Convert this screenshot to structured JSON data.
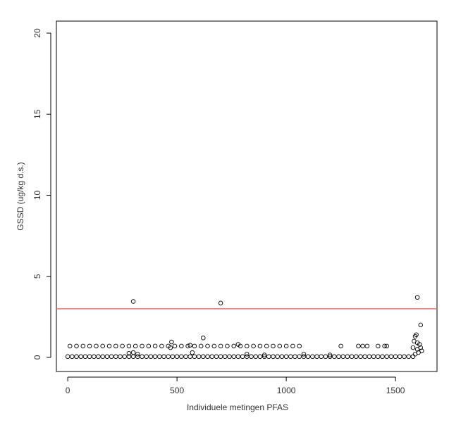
{
  "chart_data": {
    "type": "scatter",
    "xlabel": "Individuele metingen PFAS",
    "ylabel": "GSSD (ug/kg d.s.)",
    "x": [
      0,
      20,
      40,
      60,
      80,
      100,
      120,
      140,
      160,
      180,
      200,
      220,
      240,
      260,
      280,
      300,
      320,
      340,
      360,
      380,
      400,
      420,
      440,
      460,
      480,
      500,
      520,
      540,
      560,
      580,
      600,
      620,
      640,
      660,
      680,
      700,
      720,
      740,
      760,
      780,
      800,
      820,
      840,
      860,
      880,
      900,
      920,
      940,
      960,
      980,
      1000,
      1020,
      1040,
      1060,
      1080,
      1100,
      1120,
      1140,
      1160,
      1180,
      1200,
      1220,
      1240,
      1260,
      1280,
      1300,
      1320,
      1340,
      1360,
      1380,
      1400,
      1420,
      1440,
      1460,
      1480,
      1500,
      1520,
      1540,
      1560,
      1580,
      10,
      40,
      70,
      100,
      130,
      160,
      190,
      220,
      250,
      280,
      310,
      340,
      370,
      400,
      430,
      460,
      490,
      520,
      550,
      580,
      610,
      640,
      670,
      700,
      730,
      760,
      790,
      820,
      850,
      880,
      910,
      940,
      970,
      1000,
      1030,
      1060,
      1250,
      1330,
      1350,
      1370,
      1420,
      1450,
      1460,
      300,
      700,
      1600,
      620,
      1615,
      475,
      280,
      300,
      320,
      570,
      780,
      820,
      900,
      1080,
      1200,
      1580,
      1585,
      1590,
      1595,
      1600,
      1605,
      1610,
      1615,
      1620,
      1590,
      1600,
      470,
      560
    ],
    "values": [
      0.05,
      0.05,
      0.05,
      0.05,
      0.05,
      0.05,
      0.05,
      0.05,
      0.05,
      0.05,
      0.05,
      0.05,
      0.05,
      0.05,
      0.05,
      0.05,
      0.05,
      0.05,
      0.05,
      0.05,
      0.05,
      0.05,
      0.05,
      0.05,
      0.05,
      0.05,
      0.05,
      0.05,
      0.05,
      0.05,
      0.05,
      0.05,
      0.05,
      0.05,
      0.05,
      0.05,
      0.05,
      0.05,
      0.05,
      0.05,
      0.05,
      0.05,
      0.05,
      0.05,
      0.05,
      0.05,
      0.05,
      0.05,
      0.05,
      0.05,
      0.05,
      0.05,
      0.05,
      0.05,
      0.05,
      0.05,
      0.05,
      0.05,
      0.05,
      0.05,
      0.05,
      0.05,
      0.05,
      0.05,
      0.05,
      0.05,
      0.05,
      0.05,
      0.05,
      0.05,
      0.05,
      0.05,
      0.05,
      0.05,
      0.05,
      0.05,
      0.05,
      0.05,
      0.05,
      0.05,
      0.7,
      0.7,
      0.7,
      0.7,
      0.7,
      0.7,
      0.7,
      0.7,
      0.7,
      0.7,
      0.7,
      0.7,
      0.7,
      0.7,
      0.7,
      0.7,
      0.7,
      0.7,
      0.7,
      0.7,
      0.7,
      0.7,
      0.7,
      0.7,
      0.7,
      0.7,
      0.7,
      0.7,
      0.7,
      0.7,
      0.7,
      0.7,
      0.7,
      0.7,
      0.7,
      0.7,
      0.7,
      0.7,
      0.7,
      0.7,
      0.7,
      0.7,
      0.7,
      3.45,
      3.35,
      3.7,
      1.2,
      2.0,
      0.95,
      0.25,
      0.3,
      0.2,
      0.3,
      0.8,
      0.2,
      0.15,
      0.2,
      0.15,
      0.6,
      1.0,
      1.3,
      1.4,
      0.5,
      0.3,
      0.8,
      0.6,
      0.4,
      0.2,
      0.9,
      0.6,
      0.75
    ],
    "color": "#000000",
    "hline": {
      "value": 3,
      "color": "#f07070"
    },
    "xlim": [
      -52,
      1690
    ],
    "xticks": [
      0,
      500,
      1000,
      1500
    ],
    "ylim": [
      -0.87,
      20.74
    ],
    "yticks": [
      0,
      5,
      10,
      15,
      20
    ]
  }
}
